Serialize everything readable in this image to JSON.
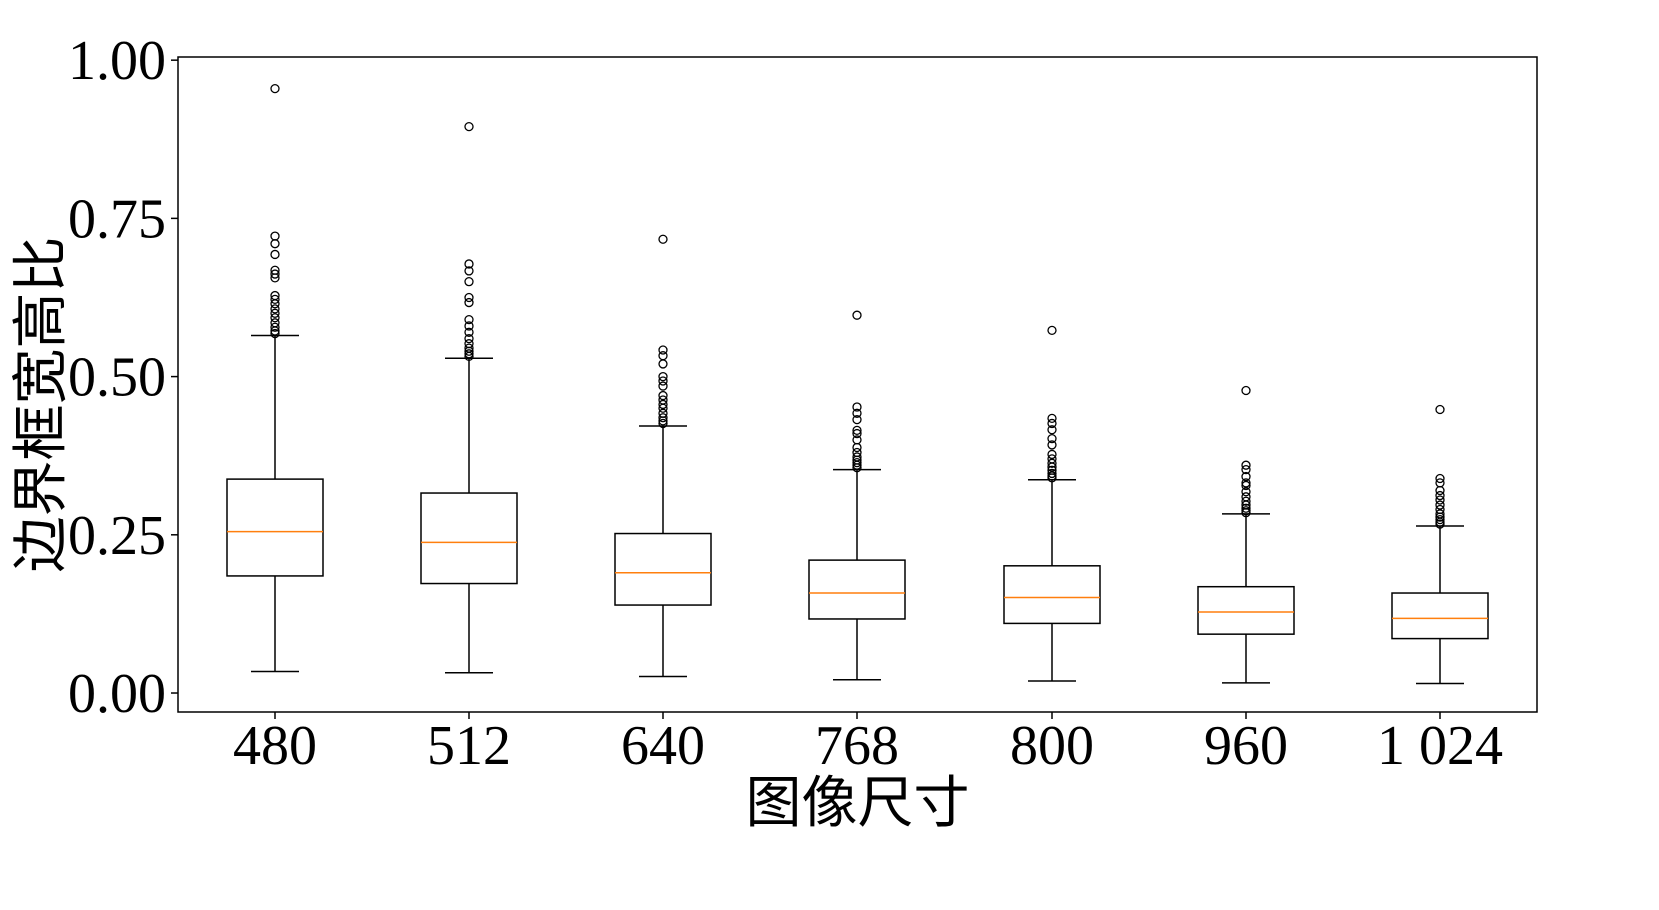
{
  "chart_data": {
    "type": "box",
    "xlabel": "图像尺寸",
    "ylabel": "边界框宽高比",
    "ylim": [
      -0.03,
      1.005
    ],
    "yticks": [
      0.0,
      0.25,
      0.5,
      0.75,
      1.0
    ],
    "ytick_labels": [
      "0.00",
      "0.25",
      "0.50",
      "0.75",
      "1.00"
    ],
    "categories": [
      "480",
      "512",
      "640",
      "768",
      "800",
      "960",
      "1 024"
    ],
    "grid": false,
    "colors": {
      "box": "#000000",
      "median": "#ff7f0e",
      "flier": "#000000"
    },
    "boxes": [
      {
        "category": "480",
        "whisker_low": 0.034,
        "q1": 0.185,
        "median": 0.255,
        "q3": 0.338,
        "whisker_high": 0.565,
        "outliers": [
          0.568,
          0.572,
          0.578,
          0.585,
          0.593,
          0.6,
          0.607,
          0.615,
          0.622,
          0.628,
          0.656,
          0.662,
          0.668,
          0.693,
          0.71,
          0.722,
          0.955
        ]
      },
      {
        "category": "512",
        "whisker_low": 0.032,
        "q1": 0.173,
        "median": 0.238,
        "q3": 0.316,
        "whisker_high": 0.529,
        "outliers": [
          0.532,
          0.536,
          0.54,
          0.545,
          0.552,
          0.56,
          0.57,
          0.58,
          0.59,
          0.617,
          0.625,
          0.65,
          0.667,
          0.678,
          0.895
        ]
      },
      {
        "category": "640",
        "whisker_low": 0.026,
        "q1": 0.139,
        "median": 0.19,
        "q3": 0.252,
        "whisker_high": 0.422,
        "outliers": [
          0.426,
          0.43,
          0.435,
          0.442,
          0.45,
          0.456,
          0.463,
          0.47,
          0.485,
          0.493,
          0.5,
          0.52,
          0.533,
          0.542,
          0.717
        ]
      },
      {
        "category": "768",
        "whisker_low": 0.021,
        "q1": 0.117,
        "median": 0.158,
        "q3": 0.21,
        "whisker_high": 0.353,
        "outliers": [
          0.356,
          0.36,
          0.364,
          0.368,
          0.373,
          0.38,
          0.388,
          0.4,
          0.41,
          0.415,
          0.432,
          0.442,
          0.452,
          0.597
        ]
      },
      {
        "category": "800",
        "whisker_low": 0.019,
        "q1": 0.11,
        "median": 0.151,
        "q3": 0.201,
        "whisker_high": 0.337,
        "outliers": [
          0.34,
          0.343,
          0.347,
          0.352,
          0.357,
          0.363,
          0.37,
          0.377,
          0.392,
          0.402,
          0.416,
          0.426,
          0.434,
          0.573
        ]
      },
      {
        "category": "960",
        "whisker_low": 0.016,
        "q1": 0.093,
        "median": 0.128,
        "q3": 0.168,
        "whisker_high": 0.283,
        "outliers": [
          0.285,
          0.288,
          0.292,
          0.297,
          0.303,
          0.31,
          0.318,
          0.328,
          0.332,
          0.342,
          0.353,
          0.36,
          0.478
        ]
      },
      {
        "category": "1 024",
        "whisker_low": 0.015,
        "q1": 0.086,
        "median": 0.118,
        "q3": 0.158,
        "whisker_high": 0.264,
        "outliers": [
          0.267,
          0.27,
          0.274,
          0.278,
          0.283,
          0.29,
          0.297,
          0.305,
          0.312,
          0.32,
          0.332,
          0.339,
          0.448
        ]
      }
    ]
  }
}
